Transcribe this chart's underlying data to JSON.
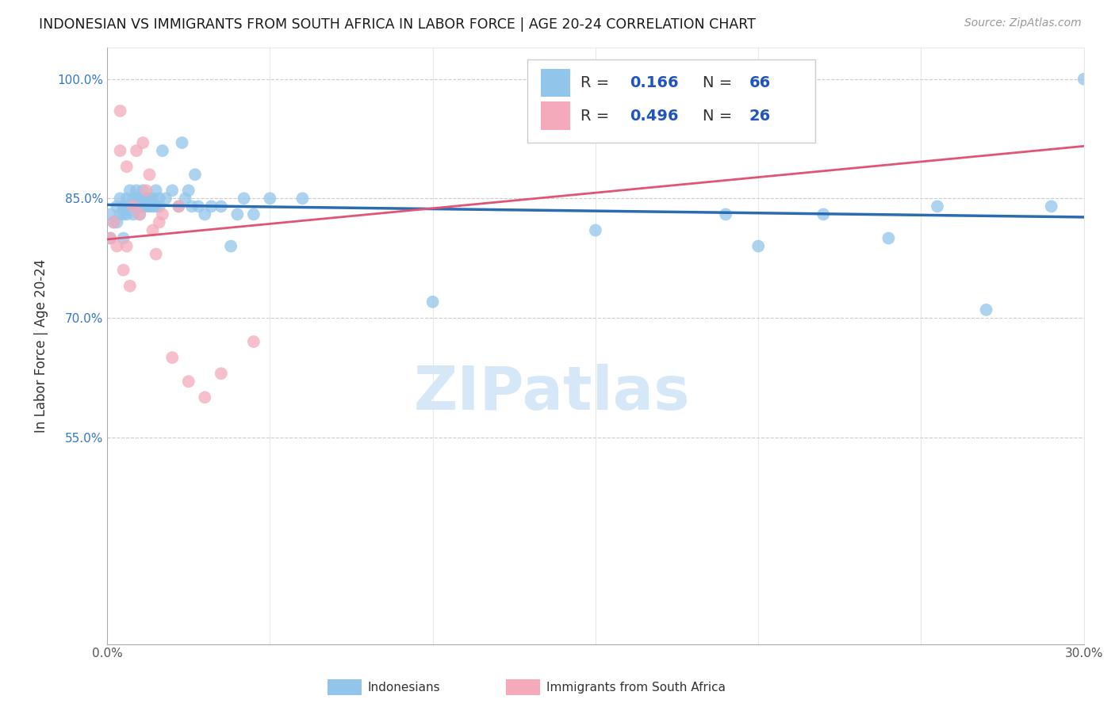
{
  "title": "INDONESIAN VS IMMIGRANTS FROM SOUTH AFRICA IN LABOR FORCE | AGE 20-24 CORRELATION CHART",
  "source": "Source: ZipAtlas.com",
  "ylabel": "In Labor Force | Age 20-24",
  "xlim": [
    0.0,
    0.3
  ],
  "ylim": [
    0.29,
    1.04
  ],
  "x_ticks": [
    0.0,
    0.05,
    0.1,
    0.15,
    0.2,
    0.25,
    0.3
  ],
  "x_tick_labels": [
    "0.0%",
    "",
    "",
    "",
    "",
    "",
    "30.0%"
  ],
  "y_ticks": [
    0.55,
    0.7,
    0.85,
    1.0
  ],
  "y_tick_labels": [
    "55.0%",
    "70.0%",
    "85.0%",
    "100.0%"
  ],
  "watermark_text": "ZIPatlas",
  "blue_color": "#92C5EA",
  "pink_color": "#F4AABB",
  "blue_line_color": "#2B6CB0",
  "pink_line_color": "#E05575",
  "indonesian_x": [
    0.001,
    0.001,
    0.002,
    0.003,
    0.003,
    0.004,
    0.004,
    0.005,
    0.005,
    0.005,
    0.006,
    0.006,
    0.006,
    0.007,
    0.007,
    0.008,
    0.008,
    0.008,
    0.009,
    0.009,
    0.009,
    0.01,
    0.01,
    0.01,
    0.011,
    0.011,
    0.011,
    0.012,
    0.012,
    0.013,
    0.013,
    0.014,
    0.014,
    0.015,
    0.015,
    0.016,
    0.016,
    0.017,
    0.018,
    0.02,
    0.022,
    0.023,
    0.024,
    0.025,
    0.026,
    0.027,
    0.028,
    0.03,
    0.032,
    0.035,
    0.038,
    0.04,
    0.042,
    0.045,
    0.05,
    0.06,
    0.1,
    0.15,
    0.19,
    0.2,
    0.22,
    0.24,
    0.255,
    0.27,
    0.29,
    0.3
  ],
  "indonesian_y": [
    0.83,
    0.8,
    0.82,
    0.84,
    0.82,
    0.85,
    0.83,
    0.84,
    0.83,
    0.8,
    0.85,
    0.84,
    0.83,
    0.86,
    0.84,
    0.85,
    0.84,
    0.83,
    0.86,
    0.85,
    0.84,
    0.85,
    0.84,
    0.83,
    0.86,
    0.85,
    0.84,
    0.85,
    0.84,
    0.85,
    0.84,
    0.85,
    0.84,
    0.86,
    0.84,
    0.85,
    0.84,
    0.91,
    0.85,
    0.86,
    0.84,
    0.92,
    0.85,
    0.86,
    0.84,
    0.88,
    0.84,
    0.83,
    0.84,
    0.84,
    0.79,
    0.83,
    0.85,
    0.83,
    0.85,
    0.85,
    0.72,
    0.81,
    0.83,
    0.79,
    0.83,
    0.8,
    0.84,
    0.71,
    0.84,
    1.0
  ],
  "southafrica_x": [
    0.001,
    0.002,
    0.003,
    0.004,
    0.004,
    0.005,
    0.006,
    0.006,
    0.007,
    0.008,
    0.009,
    0.01,
    0.011,
    0.012,
    0.013,
    0.014,
    0.015,
    0.016,
    0.017,
    0.02,
    0.022,
    0.025,
    0.03,
    0.035,
    0.045,
    0.14
  ],
  "southafrica_y": [
    0.8,
    0.82,
    0.79,
    0.96,
    0.91,
    0.76,
    0.89,
    0.79,
    0.74,
    0.84,
    0.91,
    0.83,
    0.92,
    0.86,
    0.88,
    0.81,
    0.78,
    0.82,
    0.83,
    0.65,
    0.84,
    0.62,
    0.6,
    0.63,
    0.67,
    1.0
  ]
}
